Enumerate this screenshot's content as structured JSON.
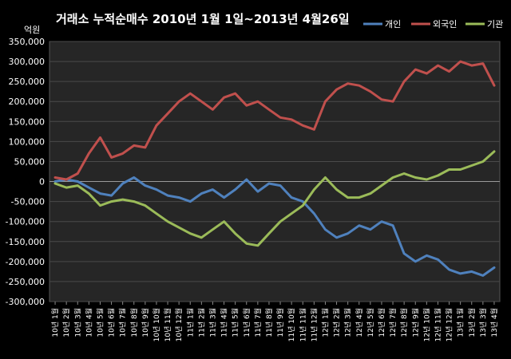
{
  "chart_data": {
    "type": "line",
    "title": "거래소 누적순매수 2010년 1월 1일~2013년 4월26일",
    "unit_label": "억원",
    "ylim": [
      -300000,
      350000
    ],
    "yticks": [
      350000,
      300000,
      250000,
      200000,
      150000,
      100000,
      50000,
      0,
      -50000,
      -100000,
      -150000,
      -200000,
      -250000,
      -300000
    ],
    "ytick_labels": [
      "350,000",
      "300,000",
      "250,000",
      "200,000",
      "150,000",
      "100,000",
      "50,000",
      "0",
      "-50,000",
      "-100,000",
      "-150,000",
      "-200,000",
      "-250,000",
      "-300,000"
    ],
    "grid": true,
    "legend_position": "top-right",
    "x_tick_labels": [
      "10년 1월",
      "10년 2월",
      "10년 3월",
      "10년 4월",
      "10년 5월",
      "10년 6월",
      "10년 7월",
      "10년 8월",
      "10년 9월",
      "10년 10월",
      "10년 11월",
      "10년 12월",
      "11년 1월",
      "11년 2월",
      "11년 3월",
      "11년 4월",
      "11년 5월",
      "11년 6월",
      "11년 7월",
      "11년 8월",
      "11년 9월",
      "11년 10월",
      "11년 11월",
      "11년 12월",
      "12년 1월",
      "12년 2월",
      "12년 3월",
      "12년 4월",
      "12년 5월",
      "12년 6월",
      "12년 7월",
      "12년 8월",
      "12년 9월",
      "12년 10월",
      "12년 11월",
      "12년 12월",
      "13년 1월",
      "13년 2월",
      "13년 3월",
      "13년 4월"
    ],
    "x": [
      0,
      1,
      2,
      3,
      4,
      5,
      6,
      7,
      8,
      9,
      10,
      11,
      12,
      13,
      14,
      15,
      16,
      17,
      18,
      19,
      20,
      21,
      22,
      23,
      24,
      25,
      26,
      27,
      28,
      29,
      30,
      31,
      32,
      33,
      34,
      35,
      36,
      37,
      38,
      39
    ],
    "series": [
      {
        "name": "개인",
        "color": "#4f81bd",
        "values": [
          0,
          5000,
          0,
          -15000,
          -30000,
          -35000,
          -5000,
          10000,
          -10000,
          -20000,
          -35000,
          -40000,
          -50000,
          -30000,
          -20000,
          -40000,
          -20000,
          5000,
          -25000,
          -5000,
          -10000,
          -40000,
          -50000,
          -80000,
          -120000,
          -140000,
          -130000,
          -110000,
          -120000,
          -100000,
          -110000,
          -180000,
          -200000,
          -185000,
          -195000,
          -220000,
          -230000,
          -225000,
          -235000,
          -215000
        ]
      },
      {
        "name": "외국인",
        "color": "#c0504d",
        "values": [
          10000,
          5000,
          20000,
          70000,
          110000,
          60000,
          70000,
          90000,
          85000,
          140000,
          170000,
          200000,
          220000,
          200000,
          180000,
          210000,
          220000,
          190000,
          200000,
          180000,
          160000,
          155000,
          140000,
          130000,
          200000,
          230000,
          245000,
          240000,
          225000,
          205000,
          200000,
          250000,
          280000,
          270000,
          290000,
          275000,
          300000,
          290000,
          295000,
          240000
        ]
      },
      {
        "name": "기관",
        "color": "#9bbb59",
        "values": [
          -5000,
          -15000,
          -10000,
          -30000,
          -60000,
          -50000,
          -45000,
          -50000,
          -60000,
          -80000,
          -100000,
          -115000,
          -130000,
          -140000,
          -120000,
          -100000,
          -130000,
          -155000,
          -160000,
          -130000,
          -100000,
          -80000,
          -60000,
          -20000,
          10000,
          -20000,
          -40000,
          -40000,
          -30000,
          -10000,
          10000,
          20000,
          10000,
          5000,
          15000,
          30000,
          30000,
          40000,
          50000,
          75000
        ]
      }
    ]
  }
}
